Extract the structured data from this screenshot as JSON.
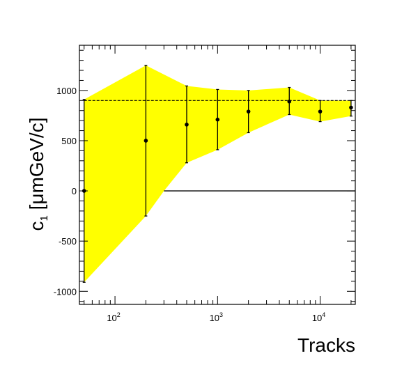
{
  "chart_data": {
    "type": "scatter",
    "title": "",
    "xlabel": "Tracks",
    "ylabel_main": "c",
    "ylabel_sub": "1",
    "ylabel_rest": " [μmGeV/c]",
    "xscale": "log",
    "xlim": [
      45,
      22000
    ],
    "ylim": [
      -1130,
      1450
    ],
    "grid": false,
    "legend": "none",
    "colors": {
      "band": "#ffff00",
      "marker": "#000000",
      "frame": "#000000"
    },
    "yticks": [
      -1000,
      -500,
      0,
      500,
      1000
    ],
    "ytick_labels": [
      "-1000",
      "-500",
      "0",
      "500",
      "1000"
    ],
    "xticks": [
      {
        "base": "10",
        "exp": "2",
        "value": 100
      },
      {
        "base": "10",
        "exp": "3",
        "value": 1000
      },
      {
        "base": "10",
        "exp": "4",
        "value": 10000
      }
    ],
    "reference_lines": [
      {
        "y": 900,
        "style": "dashed",
        "x_range": [
          50,
          20000
        ]
      },
      {
        "y": 0,
        "style": "solid",
        "x_range": [
          300,
          22000
        ]
      }
    ],
    "band": {
      "upper": [
        [
          50,
          910
        ],
        [
          200,
          1250
        ],
        [
          500,
          1045
        ],
        [
          1000,
          1010
        ],
        [
          2000,
          1000
        ],
        [
          5000,
          1030
        ],
        [
          10000,
          900
        ],
        [
          20000,
          900
        ]
      ],
      "lower": [
        [
          50,
          -910
        ],
        [
          200,
          -250
        ],
        [
          300,
          0
        ],
        [
          500,
          280
        ],
        [
          1000,
          410
        ],
        [
          2000,
          580
        ],
        [
          5000,
          760
        ],
        [
          10000,
          690
        ],
        [
          20000,
          745
        ]
      ]
    },
    "series": [
      {
        "x": [
          50,
          200,
          500,
          1000,
          2000,
          5000,
          10000,
          20000
        ],
        "y": [
          0,
          500,
          660,
          710,
          790,
          890,
          790,
          830
        ],
        "yerr_low": [
          -910,
          -250,
          280,
          410,
          580,
          760,
          690,
          745
        ],
        "yerr_high": [
          910,
          1250,
          1045,
          1010,
          1000,
          1030,
          900,
          900
        ]
      }
    ]
  }
}
